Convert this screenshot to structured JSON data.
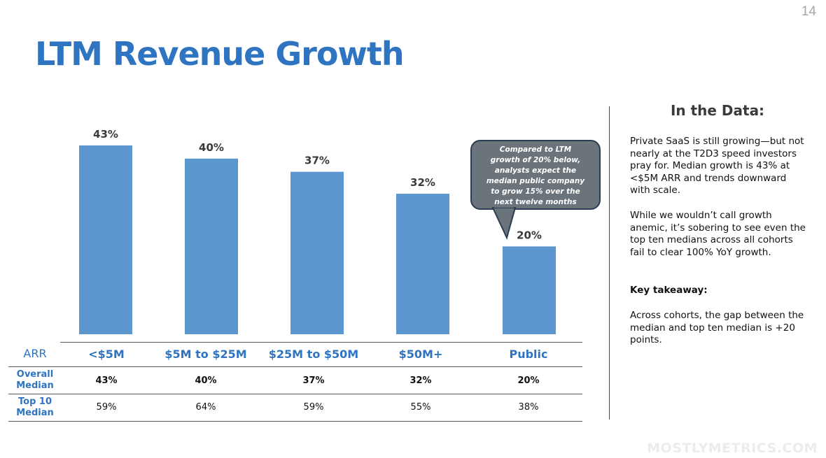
{
  "page_number": "14",
  "title": "LTM Revenue Growth",
  "chart_data": {
    "type": "bar",
    "categories": [
      "<$5M",
      "$5M to $25M",
      "$25M to $50M",
      "$50M+",
      "Public"
    ],
    "values": [
      43,
      40,
      37,
      32,
      20
    ],
    "value_labels": [
      "43%",
      "40%",
      "37%",
      "32%",
      "20%"
    ],
    "ylim": [
      0,
      43
    ],
    "color": "#5b96cf",
    "grid": false,
    "legend": "none"
  },
  "callout": {
    "line1": "Compared to LTM",
    "line2": "growth of 20% below,",
    "line3": "analysts expect the",
    "line4": "median public company",
    "line5": "to grow 15% over the",
    "line6_underlined": "next",
    "line6_rest": " twelve months"
  },
  "table": {
    "header_label": "ARR",
    "columns": [
      "<$5M",
      "$5M to $25M",
      "$25M to $50M",
      "$50M+",
      "Public"
    ],
    "rows": [
      {
        "label_line1": "Overall",
        "label_line2": "Median",
        "values": [
          "43%",
          "40%",
          "37%",
          "32%",
          "20%"
        ]
      },
      {
        "label_line1": "Top 10",
        "label_line2": "Median",
        "values": [
          "59%",
          "64%",
          "59%",
          "55%",
          "38%"
        ]
      }
    ]
  },
  "sidebar": {
    "heading": "In the Data:",
    "paragraph1": "Private SaaS is still growing—but not nearly at the T2D3 speed investors pray for. Median growth is 43% at <$5M ARR and trends downward with scale.",
    "paragraph2": "While we wouldn’t call growth anemic, it’s sobering to see even the top ten medians across all cohorts fail to clear 100% YoY growth.",
    "takeaway_label": "Key takeaway:",
    "paragraph3": "Across cohorts, the gap between the median and top ten median is +20 points."
  },
  "watermark": "MOSTLYMETRICS.COM",
  "colors": {
    "accent": "#2e74c0",
    "bar": "#5b96cf",
    "callout": "#6b747a"
  }
}
